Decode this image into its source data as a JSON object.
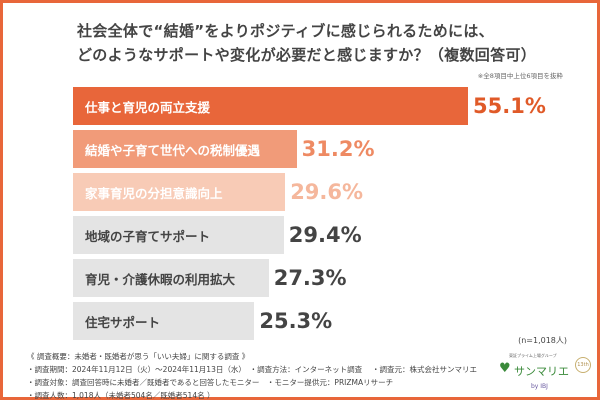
{
  "title_lines": [
    "社会全体で“結婚”をよりポジティブに感じられるためには、",
    "どのようなサポートや変化が必要だと感じますか？（複数回答可）"
  ],
  "note": "※全8項目中上位6項目を抜粋",
  "sample": "(n=1,018人)",
  "chart_data": {
    "type": "bar",
    "orientation": "horizontal",
    "unit": "%",
    "categories": [
      "仕事と育児の両立支援",
      "結婚や子育て世代への税制優遇",
      "家事育児の分担意識向上",
      "地域の子育てサポート",
      "育児・介護休暇の利用拡大",
      "住宅サポート"
    ],
    "values": [
      55.1,
      31.2,
      29.6,
      29.4,
      27.3,
      25.3
    ],
    "labels": [
      "55.1%",
      "31.2%",
      "29.6%",
      "29.4%",
      "27.3%",
      "25.3%"
    ],
    "bar_colors": [
      "#e8663a",
      "#f19b79",
      "#f8cbb6",
      "#e4e4e4",
      "#e4e4e4",
      "#e4e4e4"
    ],
    "label_colors": [
      "#ffffff",
      "#ffffff",
      "#ffffff",
      "#444444",
      "#444444",
      "#444444"
    ],
    "value_colors": [
      "#e05a28",
      "#ee8a63",
      "#f5b79c",
      "#444444",
      "#444444",
      "#444444"
    ]
  },
  "footer": [
    "《 調査概要：未婚者・既婚者が思う「いい夫婦」に関する調査 》",
    "・調査期間：2024年11月12日（火）～2024年11月13日（水）　・調査方法：インターネット調査　 ・調査元：株式会社サンマリエ",
    "・調査対象：調査回答時に未婚者／既婚者であると回答したモニター　・モニター提供元：PRIZMAリサーチ",
    "・調査人数：1,018人（未婚者504名／既婚者514名 ）"
  ],
  "logo": {
    "tagline": "東証プライム上場グループ",
    "name": "サンマリエ",
    "badge": "13th",
    "by": "by IBJ"
  }
}
